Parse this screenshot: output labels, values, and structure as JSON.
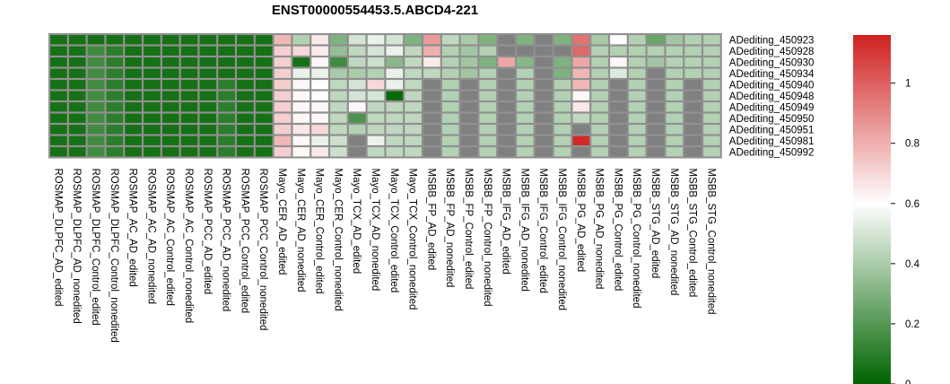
{
  "chart_data": {
    "type": "heatmap",
    "title": "ENST00000554453.5.ABCD4-221",
    "rows": [
      "ADediting_450923",
      "ADediting_450928",
      "ADediting_450930",
      "ADediting_450934",
      "ADediting_450940",
      "ADediting_450948",
      "ADediting_450949",
      "ADediting_450950",
      "ADediting_450951",
      "ADediting_450981",
      "ADediting_450992"
    ],
    "columns": [
      "ROSMAP_DLPFC_AD_edited",
      "ROSMAP_DLPFC_AD_nonedited",
      "ROSMAP_DLPFC_Control_edited",
      "ROSMAP_DLPFC_Control_nonedited",
      "ROSMAP_AC_AD_edited",
      "ROSMAP_AC_AD_nonedited",
      "ROSMAP_AC_Control_edited",
      "ROSMAP_AC_Control_nonedited",
      "ROSMAP_PCC_AD_edited",
      "ROSMAP_PCC_AD_nonedited",
      "ROSMAP_PCC_Control_edited",
      "ROSMAP_PCC_Control_nonedited",
      "Mayo_CER_AD_edited",
      "Mayo_CER_AD_nonedited",
      "Mayo_CER_Control_edited",
      "Mayo_CER_Control_nonedited",
      "Mayo_TCX_AD_edited",
      "Mayo_TCX_AD_nonedited",
      "Mayo_TCX_Control_edited",
      "Mayo_TCX_Control_nonedited",
      "MSBB_FP_AD_edited",
      "MSBB_FP_AD_nonedited",
      "MSBB_FP_Control_edited",
      "MSBB_FP_Control_nonedited",
      "MSBB_IFG_AD_edited",
      "MSBB_IFG_AD_nonedited",
      "MSBB_IFG_Control_edited",
      "MSBB_IFG_Control_nonedited",
      "MSBB_PG_AD_edited",
      "MSBB_PG_AD_nonedited",
      "MSBB_PG_Control_edited",
      "MSBB_PG_Control_nonedited",
      "MSBB_STG_AD_edited",
      "MSBB_STG_AD_nonedited",
      "MSBB_STG_Control_edited",
      "MSBB_STG_Control_nonedited"
    ],
    "values": [
      [
        0.05,
        0.05,
        0.05,
        0.05,
        0.05,
        0.05,
        0.05,
        0.05,
        0.05,
        0.05,
        0.05,
        0.05,
        0.78,
        0.42,
        0.66,
        0.3,
        0.5,
        0.55,
        0.5,
        0.3,
        0.85,
        0.45,
        0.4,
        0.3,
        null,
        0.3,
        null,
        0.3,
        0.95,
        0.4,
        0.6,
        0.42,
        0.25,
        0.38,
        0.42,
        0.42
      ],
      [
        0.05,
        0.05,
        0.15,
        0.1,
        0.05,
        0.05,
        0.05,
        0.05,
        0.05,
        0.05,
        0.05,
        0.05,
        0.72,
        0.7,
        0.65,
        0.35,
        0.45,
        0.5,
        0.55,
        0.45,
        0.8,
        0.42,
        0.38,
        0.42,
        null,
        null,
        null,
        null,
        0.98,
        0.42,
        0.42,
        0.42,
        0.42,
        0.42,
        0.42,
        0.42
      ],
      [
        0.05,
        0.05,
        0.15,
        0.1,
        0.05,
        0.05,
        0.05,
        0.05,
        0.05,
        0.05,
        0.05,
        0.05,
        0.72,
        0.05,
        0.62,
        0.15,
        0.45,
        0.48,
        0.32,
        0.45,
        0.65,
        0.42,
        0.38,
        0.3,
        0.82,
        0.32,
        null,
        0.3,
        0.82,
        0.42,
        0.62,
        0.42,
        0.38,
        0.42,
        0.42,
        0.42
      ],
      [
        0.05,
        0.05,
        0.15,
        0.1,
        0.05,
        0.05,
        0.05,
        0.05,
        0.05,
        0.05,
        0.05,
        0.05,
        0.72,
        0.55,
        0.55,
        0.4,
        0.4,
        0.42,
        0.55,
        0.45,
        0.45,
        0.42,
        0.38,
        0.42,
        null,
        0.42,
        null,
        0.3,
        0.78,
        0.42,
        0.52,
        0.42,
        null,
        0.42,
        0.42,
        0.42
      ],
      [
        0.05,
        0.05,
        0.15,
        0.1,
        0.05,
        0.05,
        0.05,
        0.05,
        0.05,
        0.1,
        0.05,
        0.05,
        0.72,
        0.62,
        0.6,
        0.45,
        0.5,
        0.7,
        0.55,
        0.45,
        null,
        0.42,
        null,
        0.42,
        null,
        0.42,
        null,
        0.42,
        0.78,
        0.42,
        null,
        0.42,
        null,
        0.42,
        null,
        0.42
      ],
      [
        0.05,
        0.05,
        0.15,
        0.1,
        0.05,
        0.05,
        0.05,
        0.05,
        0.05,
        0.1,
        0.05,
        0.05,
        0.72,
        0.62,
        0.6,
        0.45,
        0.5,
        0.5,
        0.02,
        0.45,
        null,
        0.42,
        null,
        0.42,
        null,
        0.42,
        null,
        0.42,
        0.62,
        0.42,
        null,
        0.42,
        null,
        0.42,
        null,
        0.42
      ],
      [
        0.05,
        0.05,
        0.15,
        0.1,
        0.05,
        0.05,
        0.05,
        0.05,
        0.05,
        0.1,
        0.05,
        0.05,
        0.72,
        0.62,
        0.62,
        0.45,
        0.62,
        0.45,
        0.45,
        0.45,
        null,
        0.42,
        null,
        0.42,
        null,
        0.42,
        null,
        0.42,
        0.66,
        0.42,
        null,
        0.42,
        null,
        0.42,
        null,
        0.42
      ],
      [
        0.05,
        0.05,
        0.15,
        0.1,
        0.05,
        0.05,
        0.05,
        0.05,
        0.05,
        0.1,
        0.05,
        0.05,
        0.72,
        0.62,
        0.62,
        0.45,
        0.18,
        0.45,
        0.45,
        0.45,
        null,
        0.42,
        null,
        0.42,
        null,
        0.42,
        null,
        0.42,
        0.45,
        0.42,
        null,
        0.42,
        null,
        0.42,
        null,
        0.42
      ],
      [
        0.05,
        0.05,
        0.15,
        0.1,
        0.05,
        0.05,
        0.05,
        0.05,
        0.05,
        0.1,
        0.05,
        0.05,
        0.72,
        0.66,
        0.7,
        0.45,
        0.42,
        0.45,
        0.45,
        0.45,
        null,
        0.42,
        null,
        0.42,
        null,
        0.42,
        null,
        0.42,
        null,
        0.42,
        null,
        0.42,
        null,
        0.42,
        null,
        0.42
      ],
      [
        0.05,
        0.05,
        0.15,
        0.1,
        0.05,
        0.05,
        0.05,
        0.05,
        0.05,
        0.1,
        0.05,
        0.05,
        0.78,
        0.62,
        0.55,
        0.48,
        null,
        0.55,
        0.45,
        0.45,
        null,
        0.42,
        null,
        0.42,
        null,
        0.42,
        null,
        0.42,
        1.14,
        0.42,
        null,
        0.42,
        null,
        0.42,
        null,
        0.42
      ],
      [
        0.05,
        0.05,
        0.15,
        0.1,
        0.05,
        0.05,
        0.05,
        0.05,
        0.05,
        0.1,
        0.05,
        0.05,
        0.72,
        0.62,
        0.66,
        0.48,
        null,
        0.45,
        0.45,
        0.45,
        null,
        0.42,
        null,
        0.42,
        null,
        0.42,
        null,
        0.42,
        null,
        0.42,
        null,
        0.42,
        null,
        0.42,
        null,
        0.42
      ]
    ],
    "na_color": "#808080",
    "color_scale": {
      "min": 0,
      "mid": 0.6,
      "max": 1.16,
      "low_color": "#006400",
      "mid_color": "#ffffff",
      "high_color": "#d02020"
    },
    "legend_ticks": [
      0,
      0.2,
      0.4,
      0.6,
      0.8,
      1
    ],
    "legend_tick_labels": [
      "0",
      "0.2",
      "0.4",
      "0.6",
      "0.8",
      "1"
    ],
    "legend_placement": "right"
  }
}
